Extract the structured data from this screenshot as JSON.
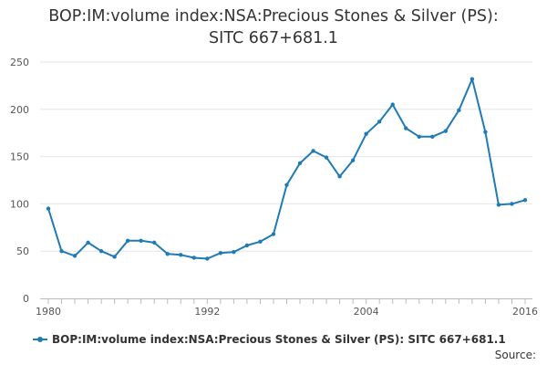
{
  "chart_data": {
    "type": "line",
    "title_line1": "BOP:IM:volume index:NSA:Precious Stones & Silver (PS):",
    "title_line2": "SITC 667+681.1",
    "series": [
      {
        "name": "BOP:IM:volume index:NSA:Precious Stones & Silver (PS): SITC 667+681.1",
        "x": [
          1980,
          1981,
          1982,
          1983,
          1984,
          1985,
          1986,
          1987,
          1988,
          1989,
          1990,
          1991,
          1992,
          1993,
          1994,
          1995,
          1996,
          1997,
          1998,
          1999,
          2000,
          2001,
          2002,
          2003,
          2004,
          2005,
          2006,
          2007,
          2008,
          2009,
          2010,
          2011,
          2012,
          2013,
          2014,
          2015,
          2016
        ],
        "values": [
          95,
          50,
          45,
          59,
          50,
          44,
          61,
          61,
          59,
          47,
          46,
          43,
          42,
          48,
          49,
          56,
          60,
          68,
          120,
          143,
          156,
          149,
          129,
          146,
          174,
          187,
          205,
          180,
          171,
          171,
          177,
          199,
          232,
          176,
          99,
          100,
          104
        ],
        "color": "#1f7bb6"
      }
    ],
    "y_ticks": [
      "0",
      "50",
      "100",
      "150",
      "200",
      "250"
    ],
    "y_tick_values": [
      0,
      50,
      100,
      150,
      200,
      250
    ],
    "x_ticks": [
      "1980",
      "1992",
      "2004",
      "2016"
    ],
    "x_tick_values": [
      1980,
      1992,
      2004,
      2016
    ],
    "ylim": [
      0,
      250
    ],
    "xlim": [
      1980,
      2016
    ],
    "grid": true,
    "legend_position": "bottom-left"
  },
  "source_label": "Source:"
}
